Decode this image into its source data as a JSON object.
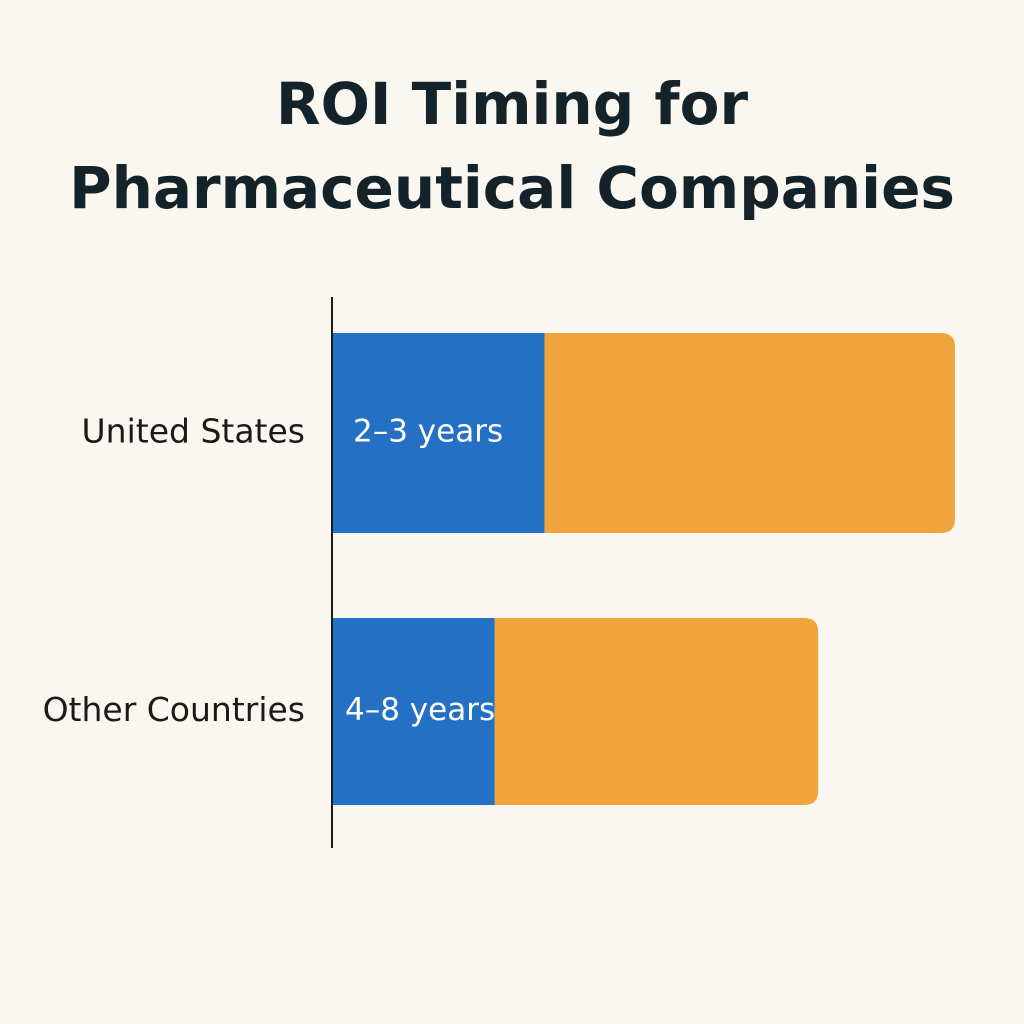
{
  "chart_data": {
    "type": "stacked-bar-horizontal",
    "title": "ROI Timing for Pharmaceutical Companies",
    "categories": [
      "United States",
      "Other Countries"
    ],
    "series": [
      {
        "color": "#2470c4",
        "values": [
          34,
          26
        ]
      },
      {
        "color": "#f0a53c",
        "values": [
          66,
          52
        ]
      }
    ],
    "segment_labels": [
      "2–3 years",
      "4–8 years"
    ]
  }
}
